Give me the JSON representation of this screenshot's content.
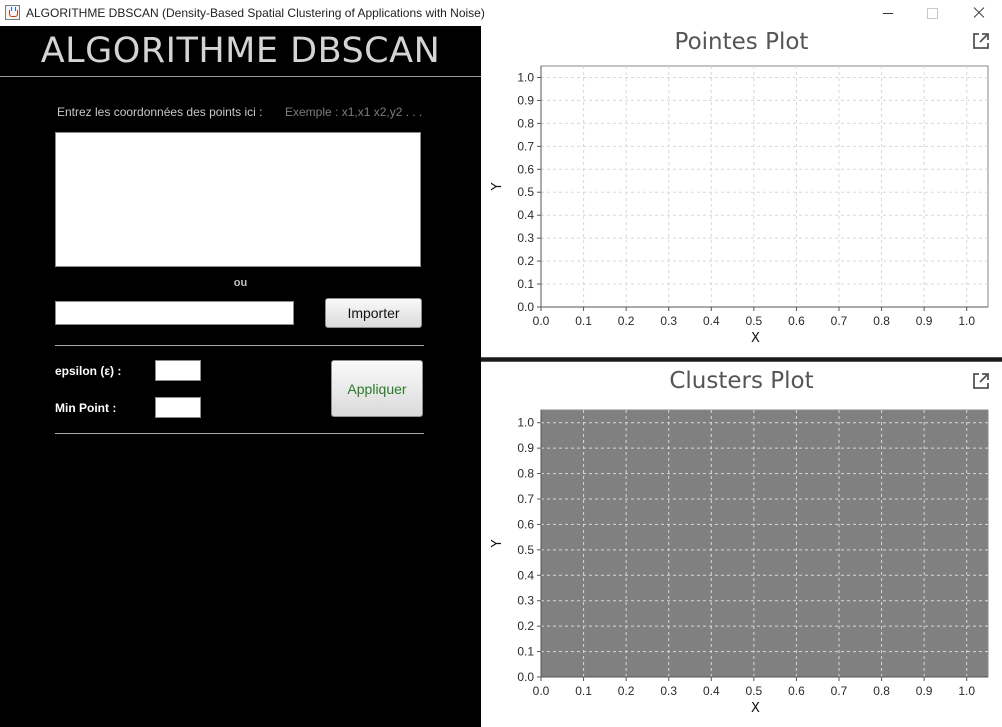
{
  "window": {
    "title": "ALGORITHME DBSCAN (Density-Based Spatial Clustering of Applications with Noise)"
  },
  "form": {
    "app_title": "ALGORITHME DBSCAN",
    "coords_label": "Entrez les coordonnées des points ici :",
    "example_hint": "Exemple : x1,x1  x2,y2  . . .",
    "coords_value": "",
    "or_label": "ou",
    "file_path_value": "",
    "import_label": "Importer",
    "epsilon_label": "epsilon (ε)  :",
    "epsilon_value": "",
    "min_point_label": "Min Point   :",
    "min_point_value": "",
    "apply_label": "Appliquer"
  },
  "colors": {
    "panel_background": "#000000",
    "apply_text": "#2a7a2a",
    "grid_line": "#d8d8d8",
    "clusters_plot_background": "#808080",
    "points_plot_background": "#ffffff"
  },
  "icons": {
    "popout": "popout-icon"
  },
  "chart_data": [
    {
      "type": "scatter",
      "title": "Pointes Plot",
      "xlabel": "X",
      "ylabel": "Y",
      "xlim": [
        0.0,
        1.05
      ],
      "ylim": [
        0.0,
        1.05
      ],
      "xticks": [
        "0.0",
        "0.1",
        "0.2",
        "0.3",
        "0.4",
        "0.5",
        "0.6",
        "0.7",
        "0.8",
        "0.9",
        "1.0"
      ],
      "yticks": [
        "0.0",
        "0.1",
        "0.2",
        "0.3",
        "0.4",
        "0.5",
        "0.6",
        "0.7",
        "0.8",
        "0.9",
        "1.0"
      ],
      "grid": true,
      "background": "white",
      "series": []
    },
    {
      "type": "scatter",
      "title": "Clusters Plot",
      "xlabel": "X",
      "ylabel": "Y",
      "xlim": [
        0.0,
        1.05
      ],
      "ylim": [
        0.0,
        1.05
      ],
      "xticks": [
        "0.0",
        "0.1",
        "0.2",
        "0.3",
        "0.4",
        "0.5",
        "0.6",
        "0.7",
        "0.8",
        "0.9",
        "1.0"
      ],
      "yticks": [
        "0.0",
        "0.1",
        "0.2",
        "0.3",
        "0.4",
        "0.5",
        "0.6",
        "0.7",
        "0.8",
        "0.9",
        "1.0"
      ],
      "grid": true,
      "background": "gray",
      "series": []
    }
  ]
}
